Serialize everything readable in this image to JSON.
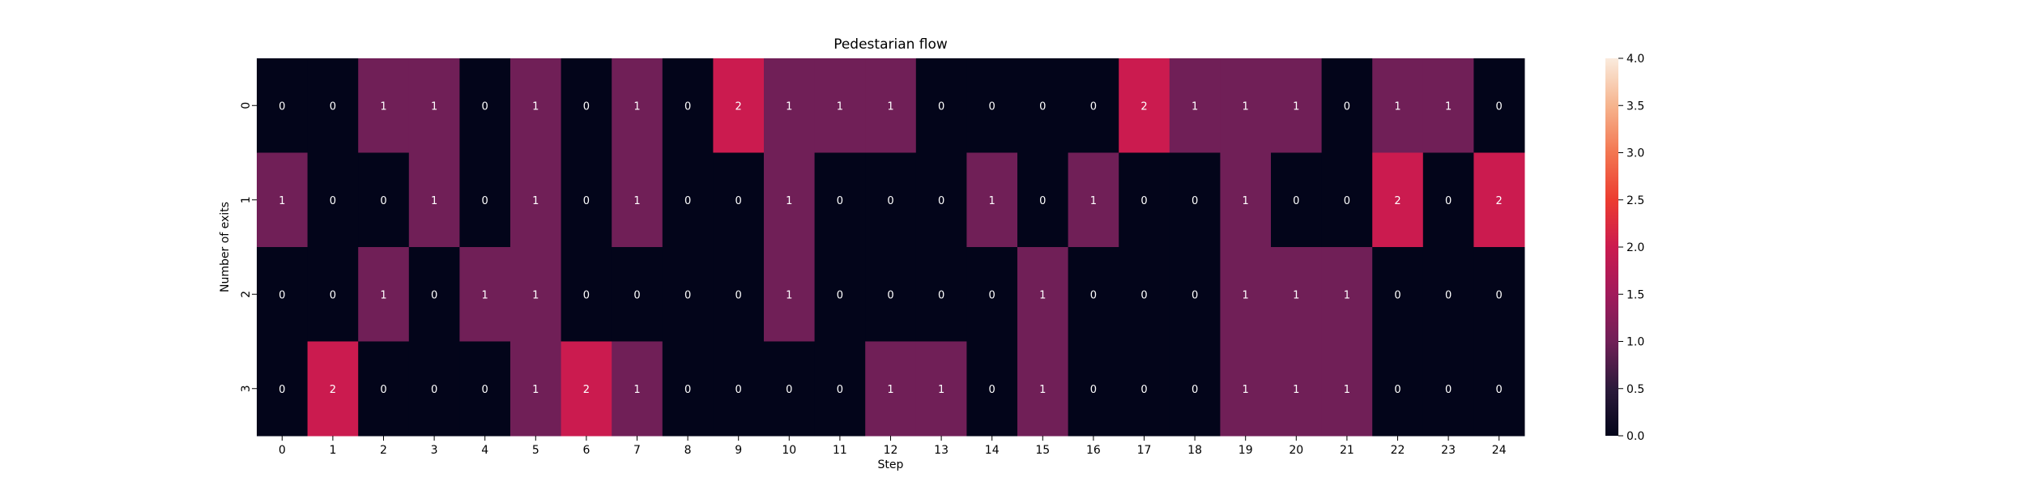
{
  "chart_data": {
    "type": "heatmap",
    "title": "Pedestarian flow",
    "xlabel": "Step",
    "ylabel": "Number of exits",
    "x_categories": [
      "0",
      "1",
      "2",
      "3",
      "4",
      "5",
      "6",
      "7",
      "8",
      "9",
      "10",
      "11",
      "12",
      "13",
      "14",
      "15",
      "16",
      "17",
      "18",
      "19",
      "20",
      "21",
      "22",
      "23",
      "24"
    ],
    "y_categories": [
      "0",
      "1",
      "2",
      "3"
    ],
    "values": [
      [
        0,
        0,
        1,
        1,
        0,
        1,
        0,
        1,
        0,
        2,
        1,
        1,
        1,
        0,
        0,
        0,
        0,
        2,
        1,
        1,
        1,
        0,
        1,
        1,
        0
      ],
      [
        1,
        0,
        0,
        1,
        0,
        1,
        0,
        1,
        0,
        0,
        1,
        0,
        0,
        0,
        1,
        0,
        1,
        0,
        0,
        1,
        0,
        0,
        2,
        0,
        2
      ],
      [
        0,
        0,
        1,
        0,
        1,
        1,
        0,
        0,
        0,
        0,
        1,
        0,
        0,
        0,
        0,
        1,
        0,
        0,
        0,
        1,
        1,
        1,
        0,
        0,
        0
      ],
      [
        0,
        2,
        0,
        0,
        0,
        1,
        2,
        1,
        0,
        0,
        0,
        0,
        1,
        1,
        0,
        1,
        0,
        0,
        0,
        1,
        1,
        1,
        0,
        0,
        0
      ]
    ],
    "annotations": true,
    "colorbar": {
      "vmin": 0,
      "vmax": 4,
      "ticks": [
        "0.0",
        "0.5",
        "1.0",
        "1.5",
        "2.0",
        "2.5",
        "3.0",
        "3.5",
        "4.0"
      ],
      "colormap": "rocket"
    },
    "colors": {
      "0": "#03051a",
      "1": "#701f57",
      "2": "#cb1b4f",
      "4": "#faebdd"
    }
  }
}
